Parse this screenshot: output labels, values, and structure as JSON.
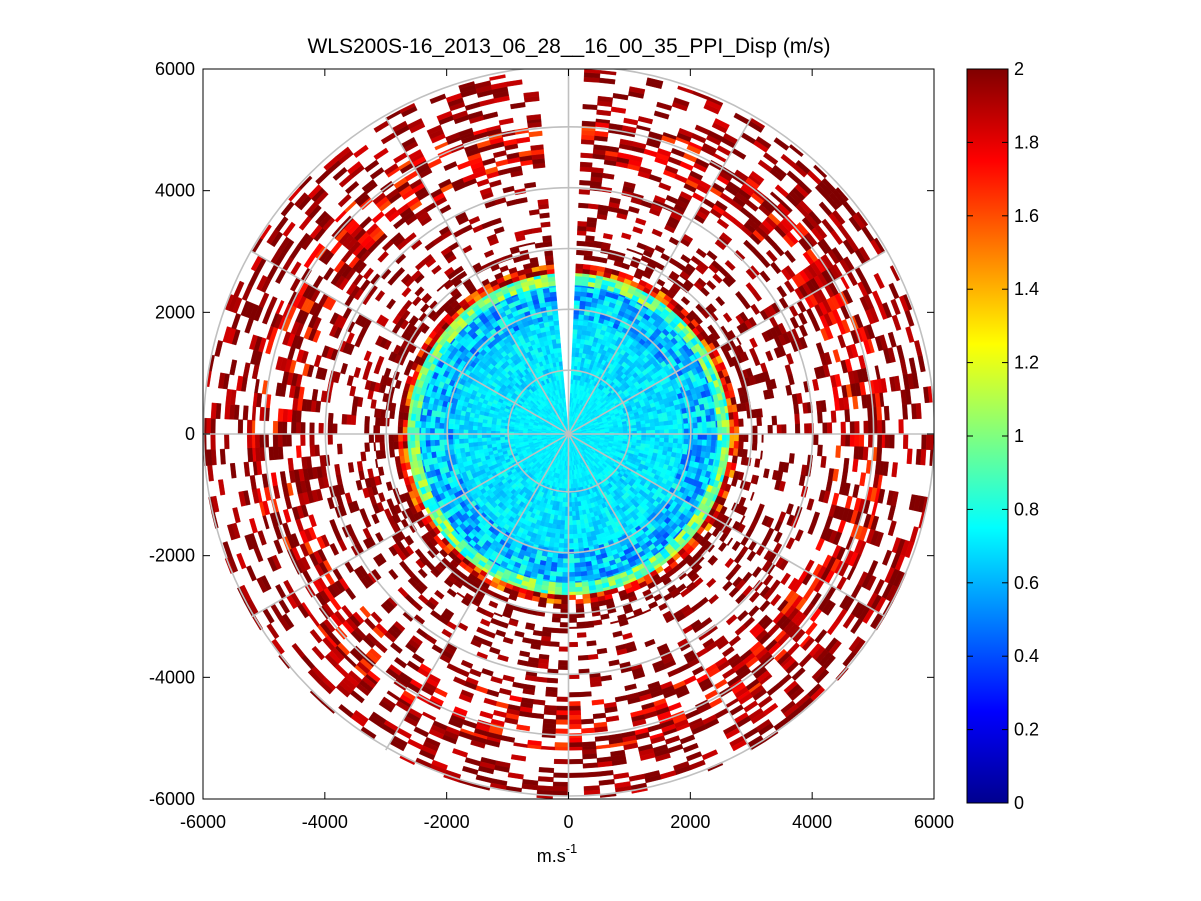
{
  "chart_data": {
    "type": "heatmap",
    "subtype": "polar-ppi",
    "title": "WLS200S-16_2013_06_28__16_00_35_PPI_Disp (m/s)",
    "xlabel": "m.s",
    "xlabel_superscript": "-1",
    "ylabel": "",
    "xlim": [
      -6000,
      6000
    ],
    "ylim": [
      -6000,
      6000
    ],
    "xticks": [
      -6000,
      -4000,
      -2000,
      0,
      2000,
      4000,
      6000
    ],
    "yticks": [
      6000,
      4000,
      2000,
      0,
      -2000,
      -4000,
      -6000
    ],
    "xtick_labels": [
      "-6000",
      "-4000",
      "-2000",
      "0",
      "2000",
      "4000",
      "6000"
    ],
    "ytick_labels": [
      "6000",
      "4000",
      "2000",
      "0",
      "-2000",
      "-4000",
      "-6000"
    ],
    "polar_grid": {
      "ring_radii": [
        1000,
        2000,
        3000,
        4000,
        5000,
        6000
      ],
      "spoke_step_deg": 30
    },
    "data_gap_azimuth_deg": [
      355,
      3
    ],
    "colormap": "jet",
    "clim": [
      0,
      2
    ],
    "colorbar_ticks": [
      0,
      0.2,
      0.4,
      0.6,
      0.8,
      1,
      1.2,
      1.4,
      1.6,
      1.8,
      2
    ],
    "colorbar_tick_labels": [
      "0",
      "0.2",
      "0.4",
      "0.6",
      "0.8",
      "1",
      "1.2",
      "1.4",
      "1.6",
      "1.8",
      "2"
    ],
    "ranges": [
      {
        "r0": 0,
        "r1": 900,
        "coverage": 1.0,
        "mean": 0.72,
        "spread": 0.05
      },
      {
        "r0": 900,
        "r1": 1900,
        "coverage": 1.0,
        "mean": 0.7,
        "spread": 0.1
      },
      {
        "r0": 1900,
        "r1": 2450,
        "coverage": 1.0,
        "mean": 0.62,
        "spread": 0.22
      },
      {
        "r0": 2450,
        "r1": 2650,
        "coverage": 1.0,
        "mean": 0.95,
        "spread": 0.25
      },
      {
        "r0": 2650,
        "r1": 2800,
        "coverage": 0.95,
        "mean": 1.75,
        "spread": 0.35
      },
      {
        "r0": 2800,
        "r1": 3200,
        "coverage": 0.45,
        "mean": 2.0,
        "spread": 0.05
      },
      {
        "r0": 3200,
        "r1": 4400,
        "coverage": 0.3,
        "mean": 1.98,
        "spread": 0.12
      },
      {
        "r0": 4400,
        "r1": 5200,
        "coverage": 0.55,
        "mean": 1.9,
        "spread": 0.3
      },
      {
        "r0": 5200,
        "r1": 6000,
        "coverage": 0.4,
        "mean": 1.97,
        "spread": 0.15
      }
    ]
  }
}
